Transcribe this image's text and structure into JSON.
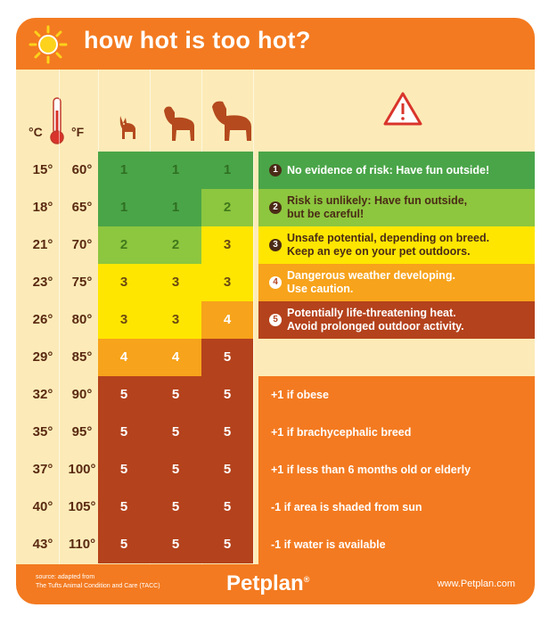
{
  "title": "how hot is too hot?",
  "units": {
    "celsius": "°C",
    "fahrenheit": "°F"
  },
  "icons": {
    "sun": "sun-icon",
    "thermometer": "thermometer-icon",
    "small_dog": "small-dog-icon",
    "medium_dog": "medium-dog-icon",
    "large_dog": "large-dog-icon",
    "warning": "warning-triangle-icon"
  },
  "colors": {
    "orange": "#f37a20",
    "cream": "#fcebb8",
    "dark_green": "#4aa548",
    "light_green": "#8dc63f",
    "yellow": "#ffe600",
    "amber": "#f7a31b",
    "red": "#b4421c"
  },
  "rows": [
    {
      "c": "15°",
      "f": "60°",
      "small": "1",
      "medium": "1",
      "large": "1",
      "colors": [
        "dgreen",
        "dgreen",
        "dgreen"
      ]
    },
    {
      "c": "18°",
      "f": "65°",
      "small": "1",
      "medium": "1",
      "large": "2",
      "colors": [
        "dgreen",
        "dgreen",
        "lgreen"
      ]
    },
    {
      "c": "21°",
      "f": "70°",
      "small": "2",
      "medium": "2",
      "large": "3",
      "colors": [
        "lgreen",
        "lgreen",
        "yellow"
      ]
    },
    {
      "c": "23°",
      "f": "75°",
      "small": "3",
      "medium": "3",
      "large": "3",
      "colors": [
        "yellow",
        "yellow",
        "yellow"
      ]
    },
    {
      "c": "26°",
      "f": "80°",
      "small": "3",
      "medium": "3",
      "large": "4",
      "colors": [
        "yellow",
        "yellow",
        "amber"
      ]
    },
    {
      "c": "29°",
      "f": "85°",
      "small": "4",
      "medium": "4",
      "large": "5",
      "colors": [
        "amber",
        "amber",
        "red"
      ]
    },
    {
      "c": "32°",
      "f": "90°",
      "small": "5",
      "medium": "5",
      "large": "5",
      "colors": [
        "red",
        "red",
        "red"
      ]
    },
    {
      "c": "35°",
      "f": "95°",
      "small": "5",
      "medium": "5",
      "large": "5",
      "colors": [
        "red",
        "red",
        "red"
      ]
    },
    {
      "c": "37°",
      "f": "100°",
      "small": "5",
      "medium": "5",
      "large": "5",
      "colors": [
        "red",
        "red",
        "red"
      ]
    },
    {
      "c": "40°",
      "f": "105°",
      "small": "5",
      "medium": "5",
      "large": "5",
      "colors": [
        "red",
        "red",
        "red"
      ]
    },
    {
      "c": "43°",
      "f": "110°",
      "small": "5",
      "medium": "5",
      "large": "5",
      "colors": [
        "red",
        "red",
        "red"
      ]
    }
  ],
  "risk_levels": [
    {
      "num": "1",
      "text_line1": "No evidence of risk: Have fun outside!",
      "text_line2": ""
    },
    {
      "num": "2",
      "text_line1": "Risk is unlikely: Have fun outside,",
      "text_line2": "but be careful!"
    },
    {
      "num": "3",
      "text_line1": "Unsafe potential, depending on breed.",
      "text_line2": "Keep an eye on your pet outdoors."
    },
    {
      "num": "4",
      "text_line1": "Dangerous weather developing.",
      "text_line2": "Use caution."
    },
    {
      "num": "5",
      "text_line1": "Potentially life-threatening heat.",
      "text_line2": "Avoid prolonged outdoor activity."
    }
  ],
  "modifiers": [
    "+1 if obese",
    "+1 if brachycephalic breed",
    "+1 if less than 6 months old or elderly",
    "-1 if area is shaded from sun",
    "-1 if water is available"
  ],
  "footer": {
    "source_line1": "source: adapted from",
    "source_line2": "The Tufts Animal Condition and Care (TACC)",
    "brand": "Petplan",
    "brand_mark": "®",
    "url": "www.Petplan.com"
  }
}
